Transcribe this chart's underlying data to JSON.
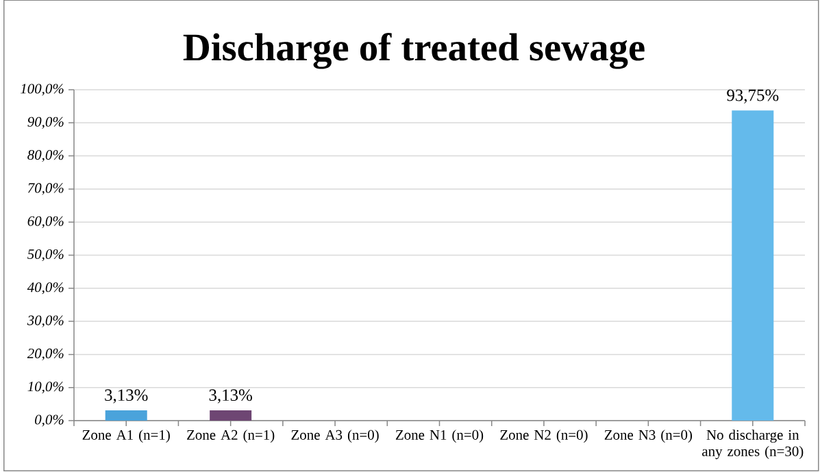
{
  "chart_data": {
    "type": "bar",
    "title": "Discharge of treated sewage",
    "categories": [
      "Zone A1 (n=1)",
      "Zone A2 (n=1)",
      "Zone A3 (n=0)",
      "Zone N1 (n=0)",
      "Zone N2 (n=0)",
      "Zone N3 (n=0)",
      "No discharge in any zones (n=30)"
    ],
    "values": [
      3.13,
      3.13,
      0,
      0,
      0,
      0,
      93.75
    ],
    "colors": [
      "#4aa3db",
      "#6e4673",
      null,
      null,
      null,
      null,
      "#64baeb"
    ],
    "value_labels": [
      "3,13%",
      "3,13%",
      null,
      null,
      null,
      null,
      "93,75%"
    ],
    "ylim": [
      0,
      100
    ],
    "yticks": [
      {
        "value": 0,
        "label": "0,0%"
      },
      {
        "value": 10,
        "label": "10,0%"
      },
      {
        "value": 20,
        "label": "20,0%"
      },
      {
        "value": 30,
        "label": "30,0%"
      },
      {
        "value": 40,
        "label": "40,0%"
      },
      {
        "value": 50,
        "label": "50,0%"
      },
      {
        "value": 60,
        "label": "60,0%"
      },
      {
        "value": 70,
        "label": "70,0%"
      },
      {
        "value": 80,
        "label": "80,0%"
      },
      {
        "value": 90,
        "label": "90,0%"
      },
      {
        "value": 100,
        "label": "100,0%"
      }
    ],
    "grid": "y"
  }
}
